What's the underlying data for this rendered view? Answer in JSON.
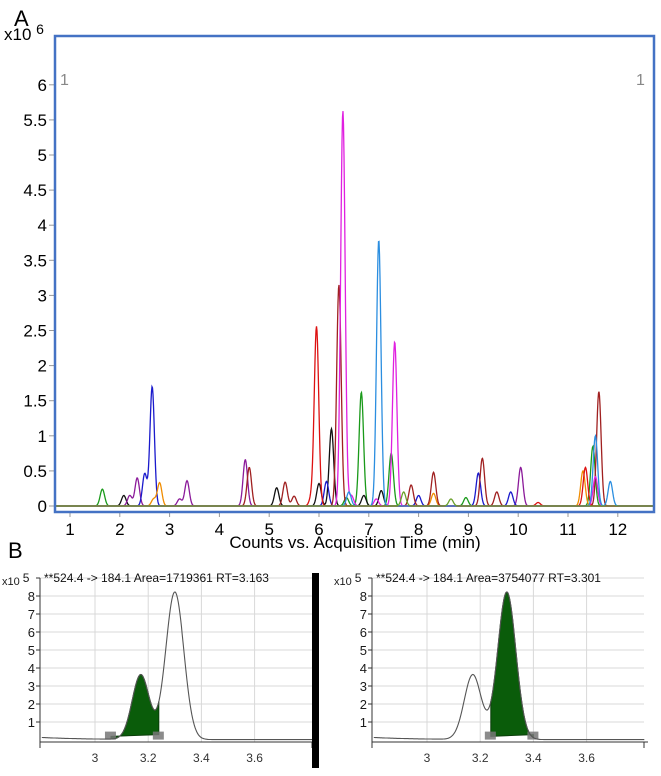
{
  "panels": {
    "a_label": "A",
    "b_label": "B"
  },
  "chart_data": [
    {
      "id": "A",
      "type": "line",
      "title": "",
      "xlabel": "Counts vs. Acquisition Time (min)",
      "ylabel": "",
      "y_multiplier": "x10",
      "y_exponent": "6",
      "corner_labels": [
        "1",
        "1"
      ],
      "xlim": [
        0.7,
        12.7
      ],
      "ylim": [
        -0.05,
        6.15
      ],
      "x_ticks": [
        "1",
        "2",
        "3",
        "4",
        "5",
        "6",
        "7",
        "8",
        "9",
        "10",
        "11",
        "12"
      ],
      "y_ticks": [
        "0",
        "0.5",
        "1",
        "1.5",
        "2",
        "2.5",
        "3",
        "3.5",
        "4",
        "4.5",
        "5",
        "5.5",
        "6"
      ],
      "grid": false,
      "frame_color": "#4472c4",
      "series": [
        {
          "name": "green",
          "color": "#1a9a1a",
          "peaks": [
            [
              1.65,
              0.24
            ],
            [
              6.55,
              0.12
            ],
            [
              6.85,
              1.62
            ],
            [
              7.45,
              0.75
            ],
            [
              8.95,
              0.12
            ],
            [
              11.5,
              0.85
            ]
          ]
        },
        {
          "name": "black",
          "color": "#111111",
          "peaks": [
            [
              2.08,
              0.15
            ],
            [
              5.15,
              0.26
            ],
            [
              6.25,
              1.1
            ],
            [
              6.0,
              0.32
            ],
            [
              7.25,
              0.22
            ],
            [
              6.9,
              0.15
            ]
          ]
        },
        {
          "name": "purple",
          "color": "#8b1a9a",
          "peaks": [
            [
              2.35,
              0.4
            ],
            [
              2.2,
              0.15
            ],
            [
              3.35,
              0.36
            ],
            [
              3.2,
              0.1
            ],
            [
              4.52,
              0.66
            ],
            [
              10.05,
              0.55
            ]
          ]
        },
        {
          "name": "blue",
          "color": "#1a1acc",
          "peaks": [
            [
              2.5,
              0.46
            ],
            [
              2.65,
              1.7
            ],
            [
              6.15,
              0.35
            ],
            [
              9.2,
              0.47
            ],
            [
              9.85,
              0.2
            ],
            [
              8.0,
              0.15
            ]
          ]
        },
        {
          "name": "orange",
          "color": "#f08c00",
          "peaks": [
            [
              2.8,
              0.33
            ],
            [
              2.68,
              0.1
            ],
            [
              8.3,
              0.18
            ],
            [
              11.3,
              0.5
            ]
          ]
        },
        {
          "name": "brown",
          "color": "#a02020",
          "peaks": [
            [
              4.6,
              0.55
            ],
            [
              5.32,
              0.34
            ],
            [
              5.5,
              0.14
            ],
            [
              6.4,
              3.15
            ],
            [
              7.85,
              0.3
            ],
            [
              8.3,
              0.48
            ],
            [
              9.28,
              0.68
            ],
            [
              9.57,
              0.2
            ],
            [
              11.62,
              1.63
            ]
          ]
        },
        {
          "name": "red",
          "color": "#dd1111",
          "peaks": [
            [
              5.95,
              2.55
            ],
            [
              5.85,
              0.12
            ],
            [
              11.35,
              0.55
            ],
            [
              10.4,
              0.05
            ]
          ]
        },
        {
          "name": "magenta",
          "color": "#e020e0",
          "peaks": [
            [
              6.48,
              5.63
            ],
            [
              7.52,
              2.34
            ],
            [
              6.65,
              0.15
            ],
            [
              7.15,
              0.1
            ],
            [
              11.55,
              0.42
            ]
          ]
        },
        {
          "name": "skyblue",
          "color": "#2b8ee0",
          "peaks": [
            [
              7.2,
              3.79
            ],
            [
              6.6,
              0.2
            ],
            [
              11.55,
              1.0
            ],
            [
              11.85,
              0.35
            ]
          ]
        },
        {
          "name": "olive",
          "color": "#6aa02a",
          "peaks": [
            [
              7.7,
              0.2
            ],
            [
              8.65,
              0.1
            ]
          ]
        }
      ]
    },
    {
      "id": "B-left",
      "type": "area",
      "title": "**524.4 -> 184.1 Area=1719361 RT=3.163",
      "y_multiplier": "x10",
      "y_exponent": "5",
      "xlim": [
        2.8,
        3.82
      ],
      "ylim": [
        0,
        8.6
      ],
      "x_ticks": [
        "3",
        "3.2",
        "3.4",
        "3.6"
      ],
      "y_ticks": [
        "1",
        "2",
        "3",
        "4",
        "5",
        "6",
        "7",
        "8"
      ],
      "grid": true,
      "peaks": [
        {
          "rt": 3.17,
          "height": 3.7,
          "integrated": true,
          "start": 3.06,
          "end": 3.24
        },
        {
          "rt": 3.3,
          "height": 8.3,
          "integrated": false
        }
      ],
      "fill_color": "#0a5c0a"
    },
    {
      "id": "B-right",
      "type": "area",
      "title": "**524.4 -> 184.1 Area=3754077 RT=3.301",
      "y_multiplier": "x10",
      "y_exponent": "5",
      "xlim": [
        2.8,
        3.82
      ],
      "ylim": [
        0,
        8.6
      ],
      "x_ticks": [
        "3",
        "3.2",
        "3.4",
        "3.6"
      ],
      "y_ticks": [
        "1",
        "2",
        "3",
        "4",
        "5",
        "6",
        "7",
        "8"
      ],
      "grid": true,
      "peaks": [
        {
          "rt": 3.17,
          "height": 3.7,
          "integrated": false
        },
        {
          "rt": 3.3,
          "height": 8.3,
          "integrated": true,
          "start": 3.24,
          "end": 3.4
        }
      ],
      "fill_color": "#0a5c0a"
    }
  ]
}
